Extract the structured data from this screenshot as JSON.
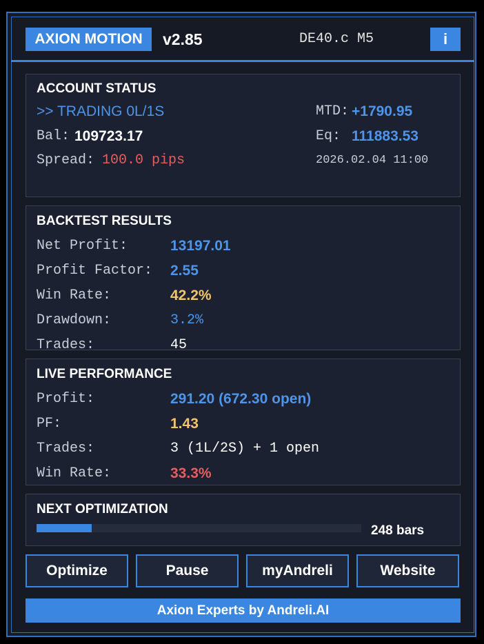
{
  "header": {
    "brand": "AXION MOTION",
    "version": "v2.85",
    "symbol": "DE40.c M5",
    "info": "i"
  },
  "account": {
    "title": "ACCOUNT STATUS",
    "status": ">> TRADING 0L/1S",
    "mtd_label": "MTD:",
    "mtd_value": "+1790.95",
    "bal_label": "Bal:",
    "bal_value": "109723.17",
    "eq_label": "Eq:",
    "eq_value": "111883.53",
    "spread_label": "Spread:",
    "spread_value": "100.0 pips",
    "datetime": "2026.02.04 11:00"
  },
  "backtest": {
    "title": "BACKTEST RESULTS",
    "rows": [
      [
        "Net Profit:",
        "13197.01"
      ],
      [
        "Profit Factor:",
        "2.55"
      ],
      [
        "Win Rate:",
        "42.2%"
      ],
      [
        "Drawdown:",
        "3.2%"
      ],
      [
        "Trades:",
        "45"
      ]
    ]
  },
  "live": {
    "title": "LIVE PERFORMANCE",
    "rows": [
      [
        "Profit:",
        "291.20 (672.30 open)"
      ],
      [
        "PF:",
        "1.43"
      ],
      [
        "Trades:",
        "3 (1L/2S) + 1 open"
      ],
      [
        "Win Rate:",
        "33.3%"
      ]
    ]
  },
  "optimization": {
    "title": "NEXT OPTIMIZATION",
    "progress": 17,
    "bars_label": "248 bars"
  },
  "buttons": [
    "Optimize",
    "Pause",
    "myAndreli",
    "Website"
  ],
  "footer": "Axion Experts by Andreli.AI"
}
